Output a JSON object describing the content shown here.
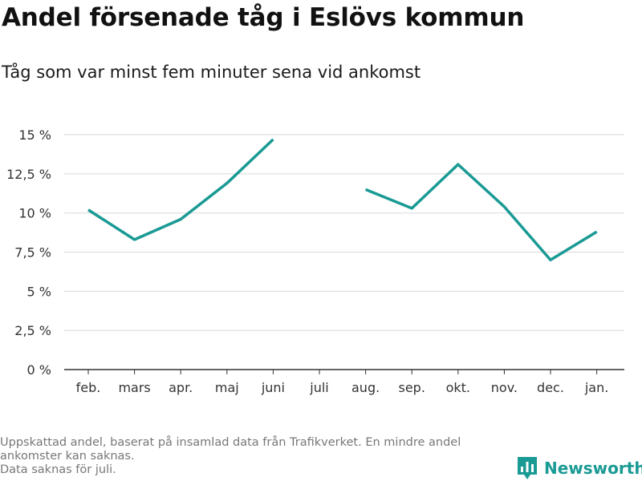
{
  "title": "Andel försenade tåg i Eslövs kommun",
  "subtitle": "Tåg som var minst fem minuter sena vid ankomst",
  "footnote": {
    "line1": "Uppskattad andel, baserat på insamlad data från Trafikverket. En mindre andel",
    "line2": "ankomster kan saknas.",
    "line3": "Data saknas för juli."
  },
  "logo": {
    "text": "Newsworthy",
    "icon": "bar-chart-flag-icon"
  },
  "colors": {
    "line": "#1a9a94",
    "grid": "#dddddd",
    "axis": "#333333",
    "brand": "#1a9a94"
  },
  "chart_data": {
    "type": "line",
    "categories": [
      "feb.",
      "mars",
      "apr.",
      "maj",
      "juni",
      "juli",
      "aug.",
      "sep.",
      "okt.",
      "nov.",
      "dec.",
      "jan."
    ],
    "series": [
      {
        "values": [
          10.2,
          8.3,
          9.6,
          11.9,
          14.7,
          null,
          11.5,
          10.3,
          13.1,
          10.4,
          7.0,
          8.8
        ]
      }
    ],
    "y_ticks": [
      0,
      2.5,
      5,
      7.5,
      10,
      12.5,
      15
    ],
    "y_tick_labels": [
      "0 %",
      "2,5 %",
      "5 %",
      "7,5 %",
      "10 %",
      "12,5 %",
      "15 %"
    ],
    "ylim": [
      0,
      15
    ],
    "grid": "horizontal"
  }
}
